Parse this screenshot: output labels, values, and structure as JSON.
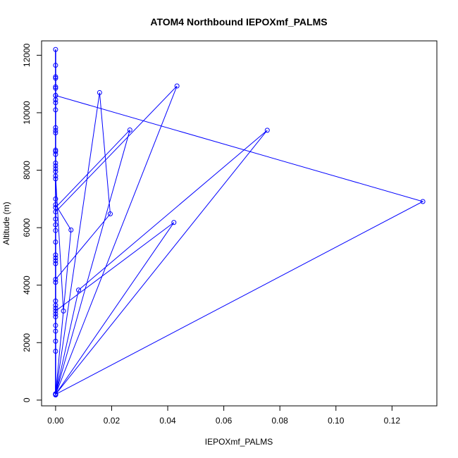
{
  "chart_data": {
    "type": "line",
    "title": "ATOM4 Northbound IEPOXmf_PALMS",
    "xlabel": "IEPOXmf_PALMS",
    "ylabel": "Altitude (m)",
    "xlim": [
      -0.005,
      0.136
    ],
    "ylim": [
      -200,
      12500
    ],
    "xticks": [
      {
        "value": 0,
        "label": "0.00"
      },
      {
        "value": 0.02,
        "label": "0.02"
      },
      {
        "value": 0.04,
        "label": "0.04"
      },
      {
        "value": 0.06,
        "label": "0.06"
      },
      {
        "value": 0.08,
        "label": "0.08"
      },
      {
        "value": 0.1,
        "label": "0.10"
      },
      {
        "value": 0.12,
        "label": "0.12"
      }
    ],
    "yticks": [
      {
        "value": 0,
        "label": "0"
      },
      {
        "value": 2000,
        "label": "2000"
      },
      {
        "value": 4000,
        "label": "4000"
      },
      {
        "value": 6000,
        "label": "6000"
      },
      {
        "value": 8000,
        "label": "8000"
      },
      {
        "value": 10000,
        "label": "10000"
      },
      {
        "value": 12000,
        "label": "12000"
      }
    ],
    "color": "#0000ff",
    "grid": false,
    "series": [
      {
        "x": [
          0,
          0,
          0,
          0,
          0.0055,
          0,
          0,
          0,
          0.0195,
          0.0157,
          0,
          0,
          0.0433,
          0,
          0,
          0,
          0.0265,
          0,
          0,
          0.0422,
          0,
          0,
          0,
          0.131,
          0,
          0,
          0.0755,
          0.0082,
          0,
          0,
          0.0028,
          0,
          0
        ],
        "y": [
          12200,
          10850,
          8700,
          6800,
          5920,
          200,
          200,
          4200,
          6480,
          10700,
          200,
          200,
          10930,
          6550,
          200,
          200,
          9400,
          6700,
          200,
          6180,
          3100,
          200,
          10600,
          6910,
          200,
          200,
          9390,
          3830,
          200,
          200,
          3100,
          7800,
          200
        ]
      }
    ],
    "extra_points": [
      {
        "x": 0,
        "y": 11650
      },
      {
        "x": 0,
        "y": 11250
      },
      {
        "x": 0,
        "y": 11200
      },
      {
        "x": 0,
        "y": 10900
      },
      {
        "x": 0,
        "y": 10600
      },
      {
        "x": 0,
        "y": 10450
      },
      {
        "x": 0,
        "y": 10350
      },
      {
        "x": 0,
        "y": 10100
      },
      {
        "x": 0,
        "y": 9480
      },
      {
        "x": 0,
        "y": 9380
      },
      {
        "x": 0,
        "y": 9300
      },
      {
        "x": 0,
        "y": 8650
      },
      {
        "x": 0,
        "y": 8550
      },
      {
        "x": 0,
        "y": 8250
      },
      {
        "x": 0,
        "y": 8150
      },
      {
        "x": 0,
        "y": 8050
      },
      {
        "x": 0,
        "y": 7950
      },
      {
        "x": 0,
        "y": 7700
      },
      {
        "x": 0,
        "y": 7000
      },
      {
        "x": 0,
        "y": 6300
      },
      {
        "x": 0,
        "y": 6100
      },
      {
        "x": 0,
        "y": 5900
      },
      {
        "x": 0,
        "y": 5500
      },
      {
        "x": 0,
        "y": 5050
      },
      {
        "x": 0,
        "y": 4950
      },
      {
        "x": 0,
        "y": 4850
      },
      {
        "x": 0,
        "y": 4750
      },
      {
        "x": 0,
        "y": 4100
      },
      {
        "x": 0,
        "y": 3450
      },
      {
        "x": 0,
        "y": 3300
      },
      {
        "x": 0,
        "y": 3200
      },
      {
        "x": 0,
        "y": 3000
      },
      {
        "x": 0,
        "y": 2900
      },
      {
        "x": 0,
        "y": 2600
      },
      {
        "x": 0,
        "y": 2400
      },
      {
        "x": 0,
        "y": 2050
      },
      {
        "x": 0,
        "y": 1700
      },
      {
        "x": 0,
        "y": 180
      },
      {
        "x": 0,
        "y": 220
      }
    ]
  }
}
